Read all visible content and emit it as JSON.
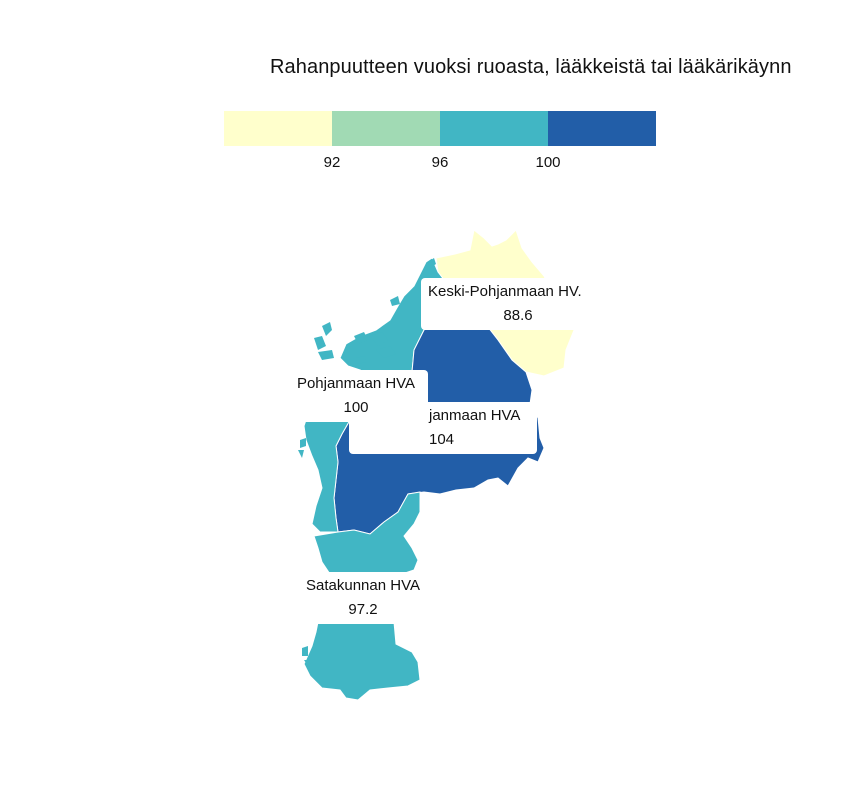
{
  "title": "Rahanpuutteen vuoksi ruoasta, lääkkeistä tai lääkärikäynn",
  "legend": {
    "colors": [
      "#ffffcc",
      "#a1dab4",
      "#41b6c4",
      "#225ea8"
    ],
    "ticks": [
      "92",
      "96",
      "100"
    ]
  },
  "regions": [
    {
      "name": "Keski-Pohjanmaan HV.",
      "value": "88.6",
      "color": "#ffffcc"
    },
    {
      "name": "Pohjanmaan HVA",
      "value": "100",
      "color": "#41b6c4"
    },
    {
      "name": "janmaan HVA",
      "value": "104",
      "color": "#225ea8"
    },
    {
      "name": "Satakunnan HVA",
      "value": "97.2",
      "color": "#41b6c4"
    }
  ]
}
